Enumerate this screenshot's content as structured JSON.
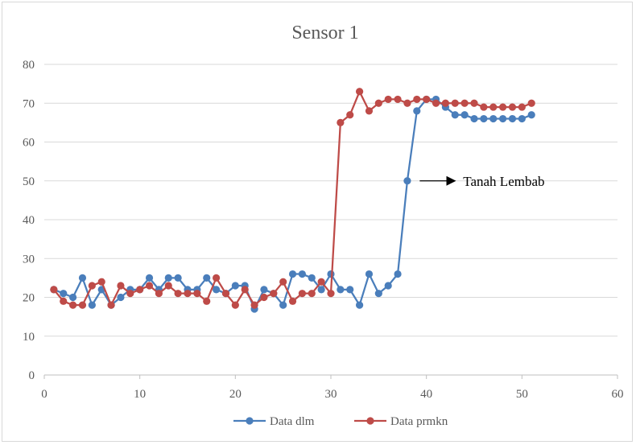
{
  "chart_data": {
    "type": "scatter",
    "title": "Sensor 1",
    "xlabel": "",
    "ylabel": "",
    "xlim": [
      0,
      60
    ],
    "ylim": [
      0,
      80
    ],
    "x_ticks": [
      0,
      10,
      20,
      30,
      40,
      50,
      60
    ],
    "y_ticks": [
      0,
      10,
      20,
      30,
      40,
      50,
      60,
      70,
      80
    ],
    "grid": "horizontal",
    "legend_position": "bottom",
    "series": [
      {
        "name": "Data dlm",
        "color": "#4a7ebb",
        "x": [
          1,
          2,
          3,
          4,
          5,
          6,
          7,
          8,
          9,
          10,
          11,
          12,
          13,
          14,
          15,
          16,
          17,
          18,
          19,
          20,
          21,
          22,
          23,
          24,
          25,
          26,
          27,
          28,
          29,
          30,
          31,
          32,
          33,
          34,
          35,
          36,
          37,
          38,
          39,
          40,
          41,
          42,
          43,
          44,
          45,
          46,
          47,
          48,
          49,
          50,
          51
        ],
        "y": [
          22,
          21,
          20,
          25,
          18,
          22,
          18,
          20,
          22,
          22,
          25,
          22,
          25,
          25,
          22,
          22,
          25,
          22,
          21,
          23,
          23,
          17,
          22,
          21,
          18,
          26,
          26,
          25,
          22,
          26,
          22,
          22,
          18,
          26,
          21,
          23,
          26,
          50,
          68,
          71,
          71,
          69,
          67,
          67,
          66,
          66,
          66,
          66,
          66,
          66,
          67
        ]
      },
      {
        "name": "Data prmkn",
        "color": "#be4b48",
        "x": [
          1,
          2,
          3,
          4,
          5,
          6,
          7,
          8,
          9,
          10,
          11,
          12,
          13,
          14,
          15,
          16,
          17,
          18,
          19,
          20,
          21,
          22,
          23,
          24,
          25,
          26,
          27,
          28,
          29,
          30,
          31,
          32,
          33,
          34,
          35,
          36,
          37,
          38,
          39,
          40,
          41,
          42,
          43,
          44,
          45,
          46,
          47,
          48,
          49,
          50,
          51
        ],
        "y": [
          22,
          19,
          18,
          18,
          23,
          24,
          18,
          23,
          21,
          22,
          23,
          21,
          23,
          21,
          21,
          21,
          19,
          25,
          21,
          18,
          22,
          18,
          20,
          21,
          24,
          19,
          21,
          21,
          24,
          21,
          65,
          67,
          73,
          68,
          70,
          71,
          71,
          70,
          71,
          71,
          70,
          70,
          70,
          70,
          70,
          69,
          69,
          69,
          69,
          69,
          70
        ]
      }
    ],
    "annotations": [
      {
        "text": "Tanah Lembab",
        "arrow_from": [
          39.3,
          50
        ],
        "arrow_to": [
          43,
          50
        ]
      }
    ]
  }
}
